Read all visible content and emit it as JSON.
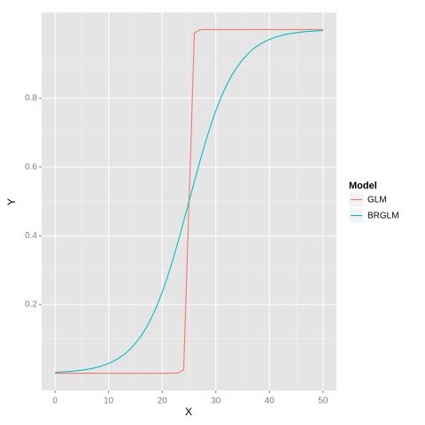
{
  "chart_data": {
    "type": "line",
    "x_label": "X",
    "y_label": "Y",
    "legend_title": "Model",
    "legend_position": "right",
    "x": [
      0,
      1,
      2,
      3,
      4,
      5,
      6,
      7,
      8,
      9,
      10,
      11,
      12,
      13,
      14,
      15,
      16,
      17,
      18,
      19,
      20,
      21,
      22,
      23,
      24,
      25,
      26,
      27,
      28,
      29,
      30,
      31,
      32,
      33,
      34,
      35,
      36,
      37,
      38,
      39,
      40,
      41,
      42,
      43,
      44,
      45,
      46,
      47,
      48,
      49,
      50
    ],
    "series": [
      {
        "name": "GLM",
        "color": "#F8766D",
        "values": [
          0,
          0,
          0,
          0,
          0,
          0,
          0,
          0,
          0,
          0,
          0,
          0,
          0,
          0,
          0,
          0,
          0,
          0,
          0,
          0,
          0,
          0,
          0,
          0.001,
          0.01,
          0.5,
          0.99,
          0.999,
          1,
          1,
          1,
          1,
          1,
          1,
          1,
          1,
          1,
          1,
          1,
          1,
          1,
          1,
          1,
          1,
          1,
          1,
          1,
          1,
          1,
          1,
          1
        ]
      },
      {
        "name": "BRGLM",
        "color": "#00BFC4",
        "values": [
          0.0028,
          0.0035,
          0.0045,
          0.0056,
          0.0071,
          0.009,
          0.0114,
          0.0143,
          0.0181,
          0.0228,
          0.0286,
          0.036,
          0.045,
          0.056,
          0.07,
          0.087,
          0.108,
          0.132,
          0.162,
          0.196,
          0.236,
          0.281,
          0.331,
          0.385,
          0.442,
          0.5,
          0.558,
          0.615,
          0.669,
          0.719,
          0.764,
          0.804,
          0.838,
          0.868,
          0.892,
          0.913,
          0.93,
          0.944,
          0.955,
          0.964,
          0.9714,
          0.9772,
          0.9819,
          0.9857,
          0.9886,
          0.991,
          0.9929,
          0.9944,
          0.9955,
          0.9965,
          0.9972
        ]
      }
    ],
    "xlim": [
      -2.5,
      52.5
    ],
    "xticks": [
      0,
      10,
      20,
      30,
      40,
      50
    ],
    "ylim": [
      -0.05,
      1.05
    ],
    "yticks": [
      0.2,
      0.4,
      0.6,
      0.8
    ],
    "grid": true,
    "minor_grid": true
  }
}
